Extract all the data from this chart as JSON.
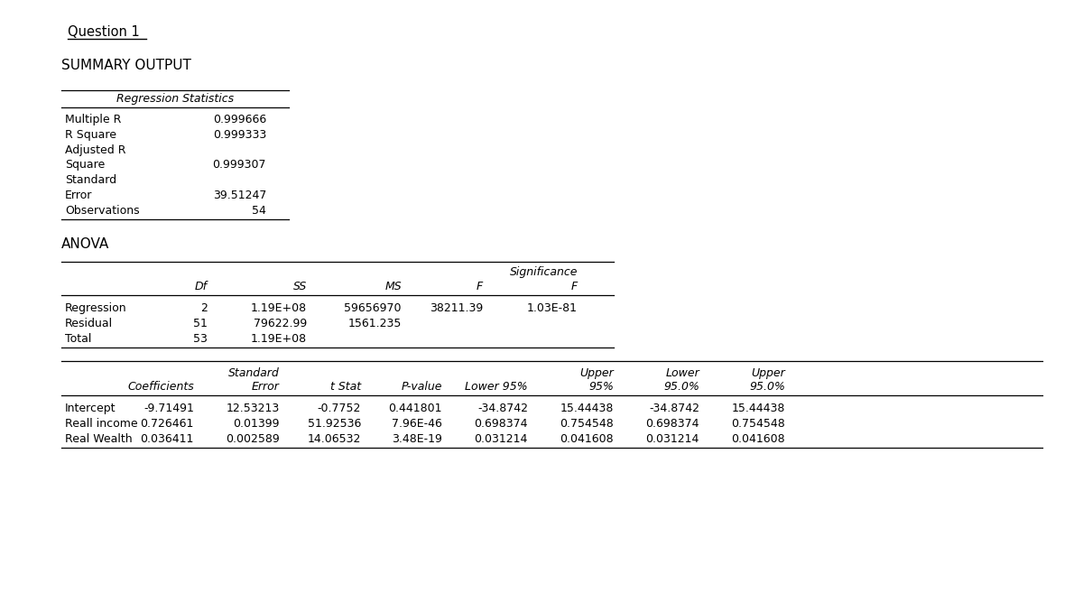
{
  "title": "Question 1",
  "summary_output": "SUMMARY OUTPUT",
  "reg_stats_header": "Regression Statistics",
  "reg_stats": [
    [
      "Multiple R",
      "0.999666"
    ],
    [
      "R Square",
      "0.999333"
    ],
    [
      "Adjusted R",
      ""
    ],
    [
      "Square",
      "0.999307"
    ],
    [
      "Standard",
      ""
    ],
    [
      "Error",
      "39.51247"
    ],
    [
      "Observations",
      "54"
    ]
  ],
  "anova_title": "ANOVA",
  "anova_rows": [
    [
      "Regression",
      "2",
      "1.19E+08",
      "59656970",
      "38211.39",
      "1.03E-81"
    ],
    [
      "Residual",
      "51",
      "79622.99",
      "1561.235",
      "",
      ""
    ],
    [
      "Total",
      "53",
      "1.19E+08",
      "",
      "",
      ""
    ]
  ],
  "coeff_rows": [
    [
      "Intercept",
      "-9.71491",
      "12.53213",
      "-0.7752",
      "0.441801",
      "-34.8742",
      "15.44438",
      "-34.8742",
      "15.44438"
    ],
    [
      "Reall income",
      "0.726461",
      "0.01399",
      "51.92536",
      "7.96E-46",
      "0.698374",
      "0.754548",
      "0.698374",
      "0.754548"
    ],
    [
      "Real Wealth",
      "0.036411",
      "0.002589",
      "14.06532",
      "3.48E-19",
      "0.031214",
      "0.041608",
      "0.031214",
      "0.041608"
    ]
  ],
  "bg_color": "#ffffff",
  "text_color": "#000000",
  "font_size": 9.0,
  "font_family": "Arial"
}
